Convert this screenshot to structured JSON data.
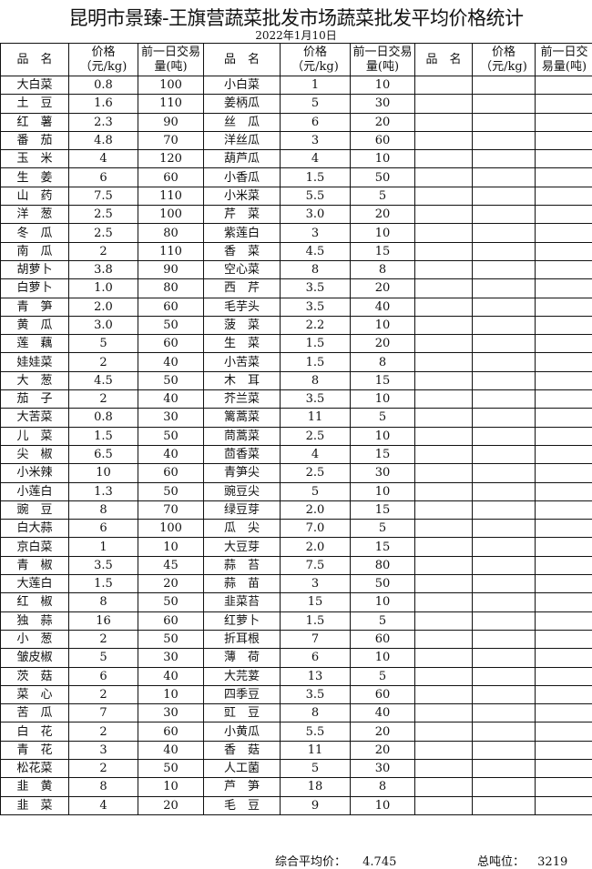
{
  "title": "昆明市景臻-王旗营蔬菜批发市场蔬菜批发平均价格统计",
  "date": "2022年1月10日",
  "headers": [
    "品　名",
    "价格（元/kg)",
    "前一日交易量(吨)",
    "品　名",
    "价格（元/kg)",
    "前一日交易量(吨)",
    "品　名",
    "价格（元/kg)",
    "前一日交易量(吨)"
  ],
  "rows": [
    [
      "大白菜",
      "0.8",
      "100",
      "小白菜",
      "1",
      "10"
    ],
    [
      "土　豆",
      "1.6",
      "110",
      "姜柄瓜",
      "5",
      "30"
    ],
    [
      "红　薯",
      "2.3",
      "90",
      "丝　瓜",
      "6",
      "20"
    ],
    [
      "番　茄",
      "4.8",
      "70",
      "洋丝瓜",
      "3",
      "60"
    ],
    [
      "玉　米",
      "4",
      "120",
      "葫芦瓜",
      "4",
      "10"
    ],
    [
      "生　姜",
      "6",
      "60",
      "小香瓜",
      "1.5",
      "50"
    ],
    [
      "山　药",
      "7.5",
      "110",
      "小米菜",
      "5.5",
      "5"
    ],
    [
      "洋　葱",
      "2.5",
      "100",
      "芹　菜",
      "3.0",
      "20"
    ],
    [
      "冬　瓜",
      "2.5",
      "80",
      "紫莲白",
      "3",
      "10"
    ],
    [
      "南　瓜",
      "2",
      "110",
      "香　菜",
      "4.5",
      "15"
    ],
    [
      "胡萝卜",
      "3.8",
      "90",
      "空心菜",
      "8",
      "8"
    ],
    [
      "白萝卜",
      "1.0",
      "80",
      "西　芹",
      "3.5",
      "20"
    ],
    [
      "青　笋",
      "2.0",
      "60",
      "毛芋头",
      "3.5",
      "40"
    ],
    [
      "黄　瓜",
      "3.0",
      "50",
      "菠　菜",
      "2.2",
      "10"
    ],
    [
      "莲　藕",
      "5",
      "60",
      "生　菜",
      "1.5",
      "20"
    ],
    [
      "娃娃菜",
      "2",
      "40",
      "小苦菜",
      "1.5",
      "8"
    ],
    [
      "大　葱",
      "4.5",
      "50",
      "木　耳",
      "8",
      "15"
    ],
    [
      "茄　子",
      "2",
      "40",
      "芥兰菜",
      "3.5",
      "10"
    ],
    [
      "大苦菜",
      "0.8",
      "30",
      "篱蒿菜",
      "11",
      "5"
    ],
    [
      "儿　菜",
      "1.5",
      "50",
      "茼蒿菜",
      "2.5",
      "10"
    ],
    [
      "尖　椒",
      "6.5",
      "40",
      "茴香菜",
      "4",
      "15"
    ],
    [
      "小米辣",
      "10",
      "60",
      "青笋尖",
      "2.5",
      "30"
    ],
    [
      "小莲白",
      "1.3",
      "50",
      "豌豆尖",
      "5",
      "10"
    ],
    [
      "豌　豆",
      "8",
      "70",
      "绿豆芽",
      "2.0",
      "15"
    ],
    [
      "白大蒜",
      "6",
      "100",
      "瓜　尖",
      "7.0",
      "5"
    ],
    [
      "京白菜",
      "1",
      "10",
      "大豆芽",
      "2.0",
      "15"
    ],
    [
      "青　椒",
      "3.5",
      "45",
      "蒜　苔",
      "7.5",
      "80"
    ],
    [
      "大莲白",
      "1.5",
      "20",
      "蒜　苗",
      "3",
      "50"
    ],
    [
      "红　椒",
      "8",
      "50",
      "韭菜苔",
      "15",
      "10"
    ],
    [
      "独　蒜",
      "16",
      "60",
      "红萝卜",
      "1.5",
      "5"
    ],
    [
      "小　葱",
      "2",
      "50",
      "折耳根",
      "7",
      "60"
    ],
    [
      "皱皮椒",
      "5",
      "30",
      "薄　荷",
      "6",
      "10"
    ],
    [
      "茨　菇",
      "6",
      "40",
      "大芫荽",
      "13",
      "5"
    ],
    [
      "菜　心",
      "2",
      "10",
      "四季豆",
      "3.5",
      "60"
    ],
    [
      "苦　瓜",
      "7",
      "30",
      "豇　豆",
      "8",
      "40"
    ],
    [
      "白　花",
      "2",
      "60",
      "小黄瓜",
      "5.5",
      "20"
    ],
    [
      "青　花",
      "3",
      "40",
      "香　菇",
      "11",
      "20"
    ],
    [
      "松花菜",
      "2",
      "50",
      "人工菌",
      "5",
      "30"
    ],
    [
      "韭　黄",
      "8",
      "10",
      "芦　笋",
      "18",
      "8"
    ],
    [
      "韭　菜",
      "4",
      "20",
      "毛　豆",
      "9",
      "10"
    ]
  ],
  "footer": {
    "avg_label": "综合平均价：",
    "avg_value": "4.745",
    "total_label": "总吨位：",
    "total_value": "3219"
  }
}
